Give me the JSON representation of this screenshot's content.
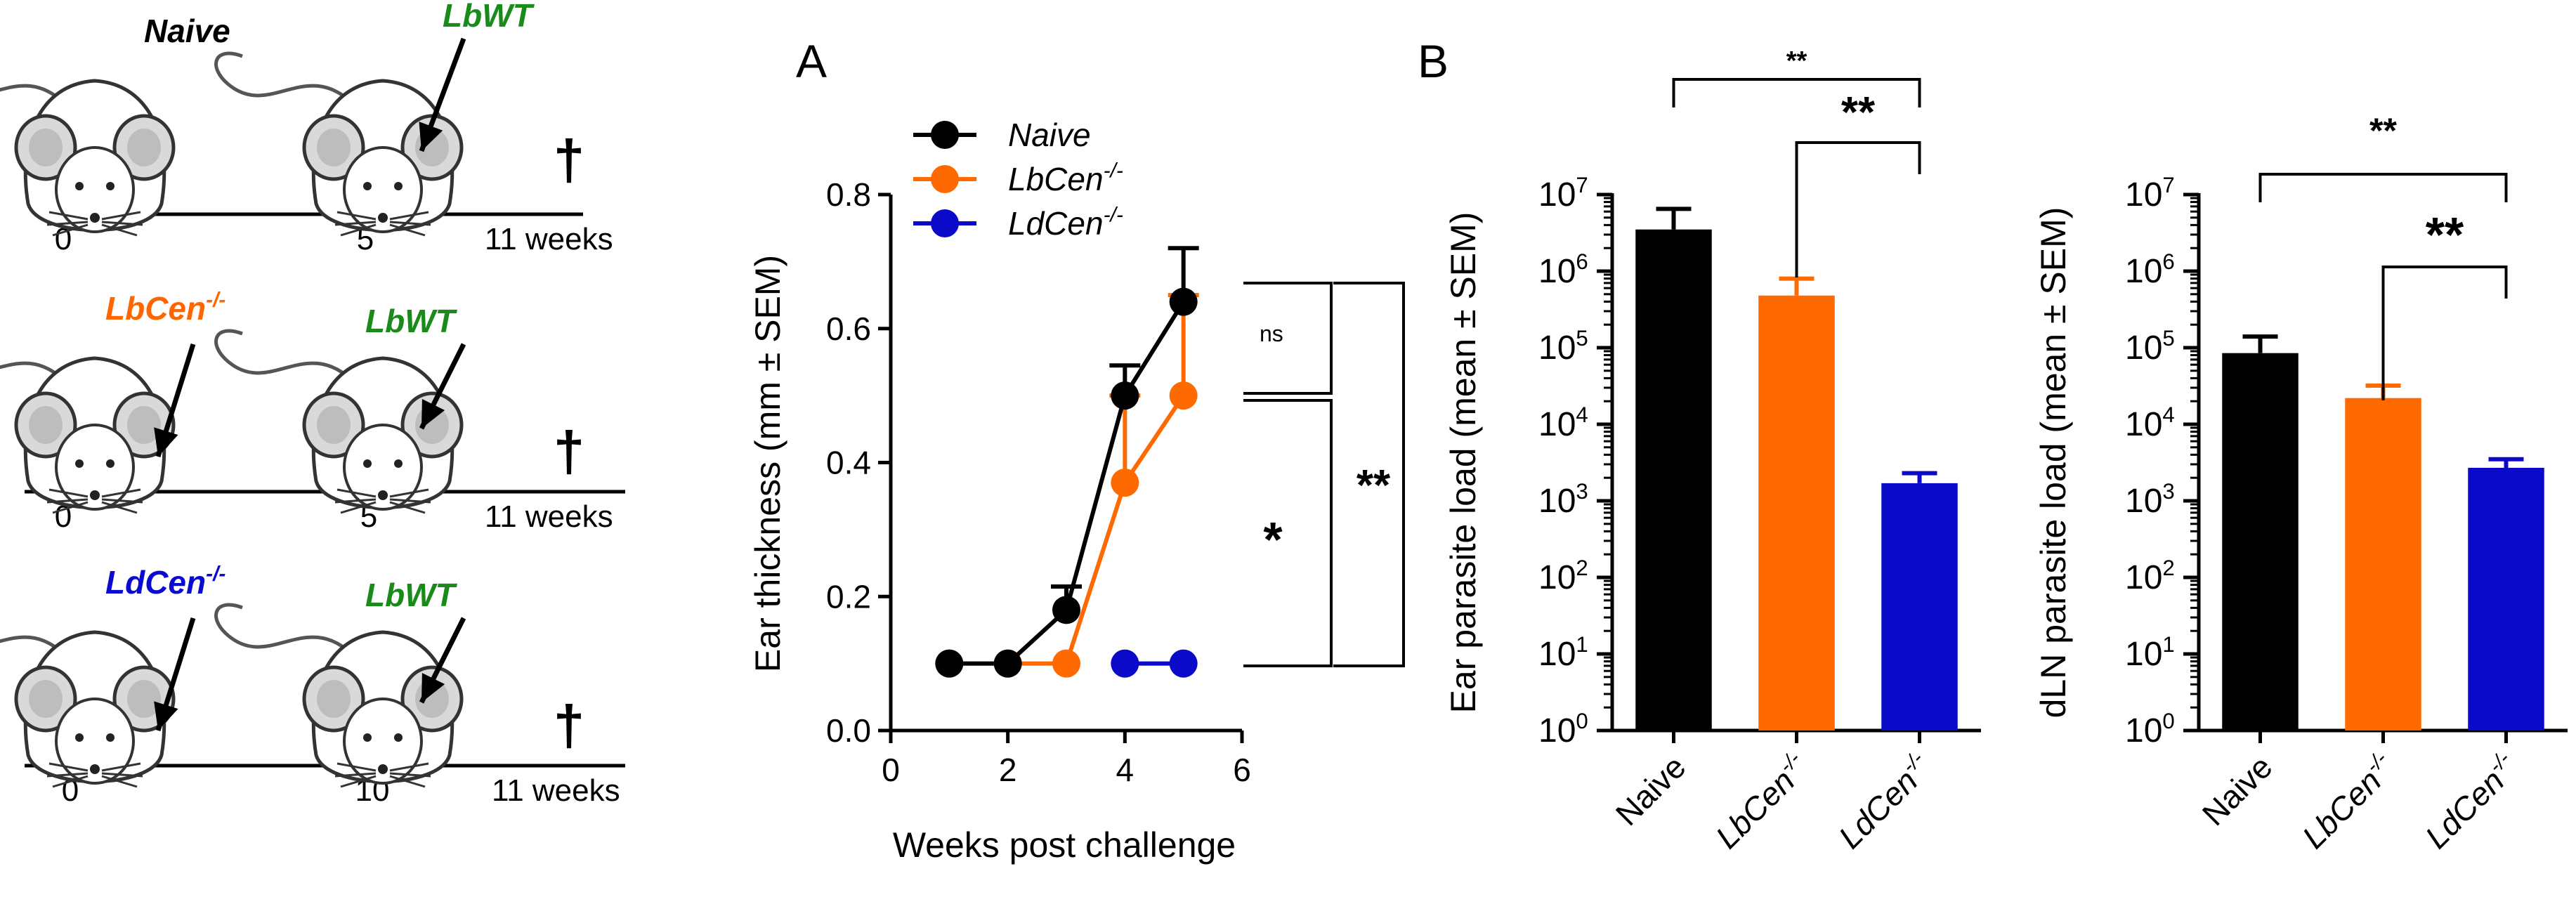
{
  "schematic": {
    "rows": [
      {
        "prime": "Naive",
        "prime_color": "#000000",
        "challenge": "LbWT",
        "challenge_color": "#1a8a1a",
        "ticks": [
          "0",
          "5",
          "11  weeks"
        ]
      },
      {
        "prime": "LbCen",
        "prime_sup": "-/-",
        "prime_color": "#ff6600",
        "challenge": "LbWT",
        "challenge_color": "#1a8a1a",
        "ticks": [
          "0",
          "5",
          "11  weeks"
        ]
      },
      {
        "prime": "LdCen",
        "prime_sup": "-/-",
        "prime_color": "#0a0ad0",
        "challenge": "LbWT",
        "challenge_color": "#1a8a1a",
        "ticks": [
          "0",
          "10",
          "11  weeks"
        ]
      }
    ],
    "cross": "†"
  },
  "chart_data": [
    {
      "panel": "A",
      "type": "line",
      "xlabel": "Weeks post challenge",
      "ylabel": "Ear thickness (mm ± SEM)",
      "xlim": [
        0,
        6
      ],
      "ylim": [
        0,
        0.8
      ],
      "xticks": [
        "0",
        "2",
        "4",
        "6"
      ],
      "yticks": [
        "0.0",
        "0.2",
        "0.4",
        "0.6",
        "0.8"
      ],
      "legend_position": "top-left",
      "series": [
        {
          "name": "Naive",
          "color": "#000000",
          "x": [
            1,
            2,
            3,
            4,
            5
          ],
          "values": [
            0.1,
            0.1,
            0.18,
            0.5,
            0.64
          ],
          "err": [
            0,
            0,
            0.035,
            0.045,
            0.08
          ]
        },
        {
          "name": "LbCen",
          "sup": "-/-",
          "color": "#ff6a00",
          "x": [
            1,
            2,
            3,
            4,
            5
          ],
          "values": [
            0.1,
            0.1,
            0.1,
            0.37,
            0.5
          ],
          "err": [
            0,
            0,
            0,
            0.13,
            0.15
          ]
        },
        {
          "name": "LdCen",
          "sup": "-/-",
          "color": "#0a0ac8",
          "x": [
            4,
            5
          ],
          "values": [
            0.1,
            0.1
          ],
          "err": [
            0,
            0
          ]
        }
      ],
      "significance": [
        {
          "label": "ns",
          "between": "Naive vs LbCen"
        },
        {
          "label": "*",
          "between": "LbCen vs LdCen"
        },
        {
          "label": "**",
          "between": "Naive vs LdCen"
        }
      ]
    },
    {
      "panel": "B",
      "type": "bar",
      "ylabel": "Ear parasite load (mean ± SEM)",
      "yscale": "log",
      "ylim_exp": [
        0,
        7
      ],
      "ytick_base": "10",
      "yticks_exp": [
        "0",
        "1",
        "2",
        "3",
        "4",
        "5",
        "6",
        "7"
      ],
      "categories": [
        {
          "name": "Naive",
          "sup": "",
          "italic": false
        },
        {
          "name": "LbCen",
          "sup": "-/-",
          "italic": true
        },
        {
          "name": "LdCen",
          "sup": "-/-",
          "italic": true
        }
      ],
      "values": [
        3500000,
        480000,
        1700
      ],
      "err_top": [
        6500000,
        800000,
        2300
      ],
      "colors": [
        "#000000",
        "#ff6a00",
        "#0a0ac8"
      ],
      "significance": [
        {
          "label": "**",
          "from": 0,
          "to": 2
        },
        {
          "label": "**",
          "from": 1,
          "to": 2
        }
      ]
    },
    {
      "panel": "",
      "type": "bar",
      "ylabel": "dLN parasite load (mean ± SEM)",
      "yscale": "log",
      "ylim_exp": [
        0,
        7
      ],
      "ytick_base": "10",
      "yticks_exp": [
        "0",
        "1",
        "2",
        "3",
        "4",
        "5",
        "6",
        "7"
      ],
      "categories": [
        {
          "name": "Naive",
          "sup": "",
          "italic": false
        },
        {
          "name": "LbCen",
          "sup": "-/-",
          "italic": true
        },
        {
          "name": "LdCen",
          "sup": "-/-",
          "italic": true
        }
      ],
      "values": [
        85000,
        22000,
        2700
      ],
      "err_top": [
        140000,
        32000,
        3500
      ],
      "colors": [
        "#000000",
        "#ff6a00",
        "#0a0ac8"
      ],
      "significance": [
        {
          "label": "**",
          "from": 0,
          "to": 2
        },
        {
          "label": "**",
          "from": 1,
          "to": 2
        }
      ]
    }
  ]
}
